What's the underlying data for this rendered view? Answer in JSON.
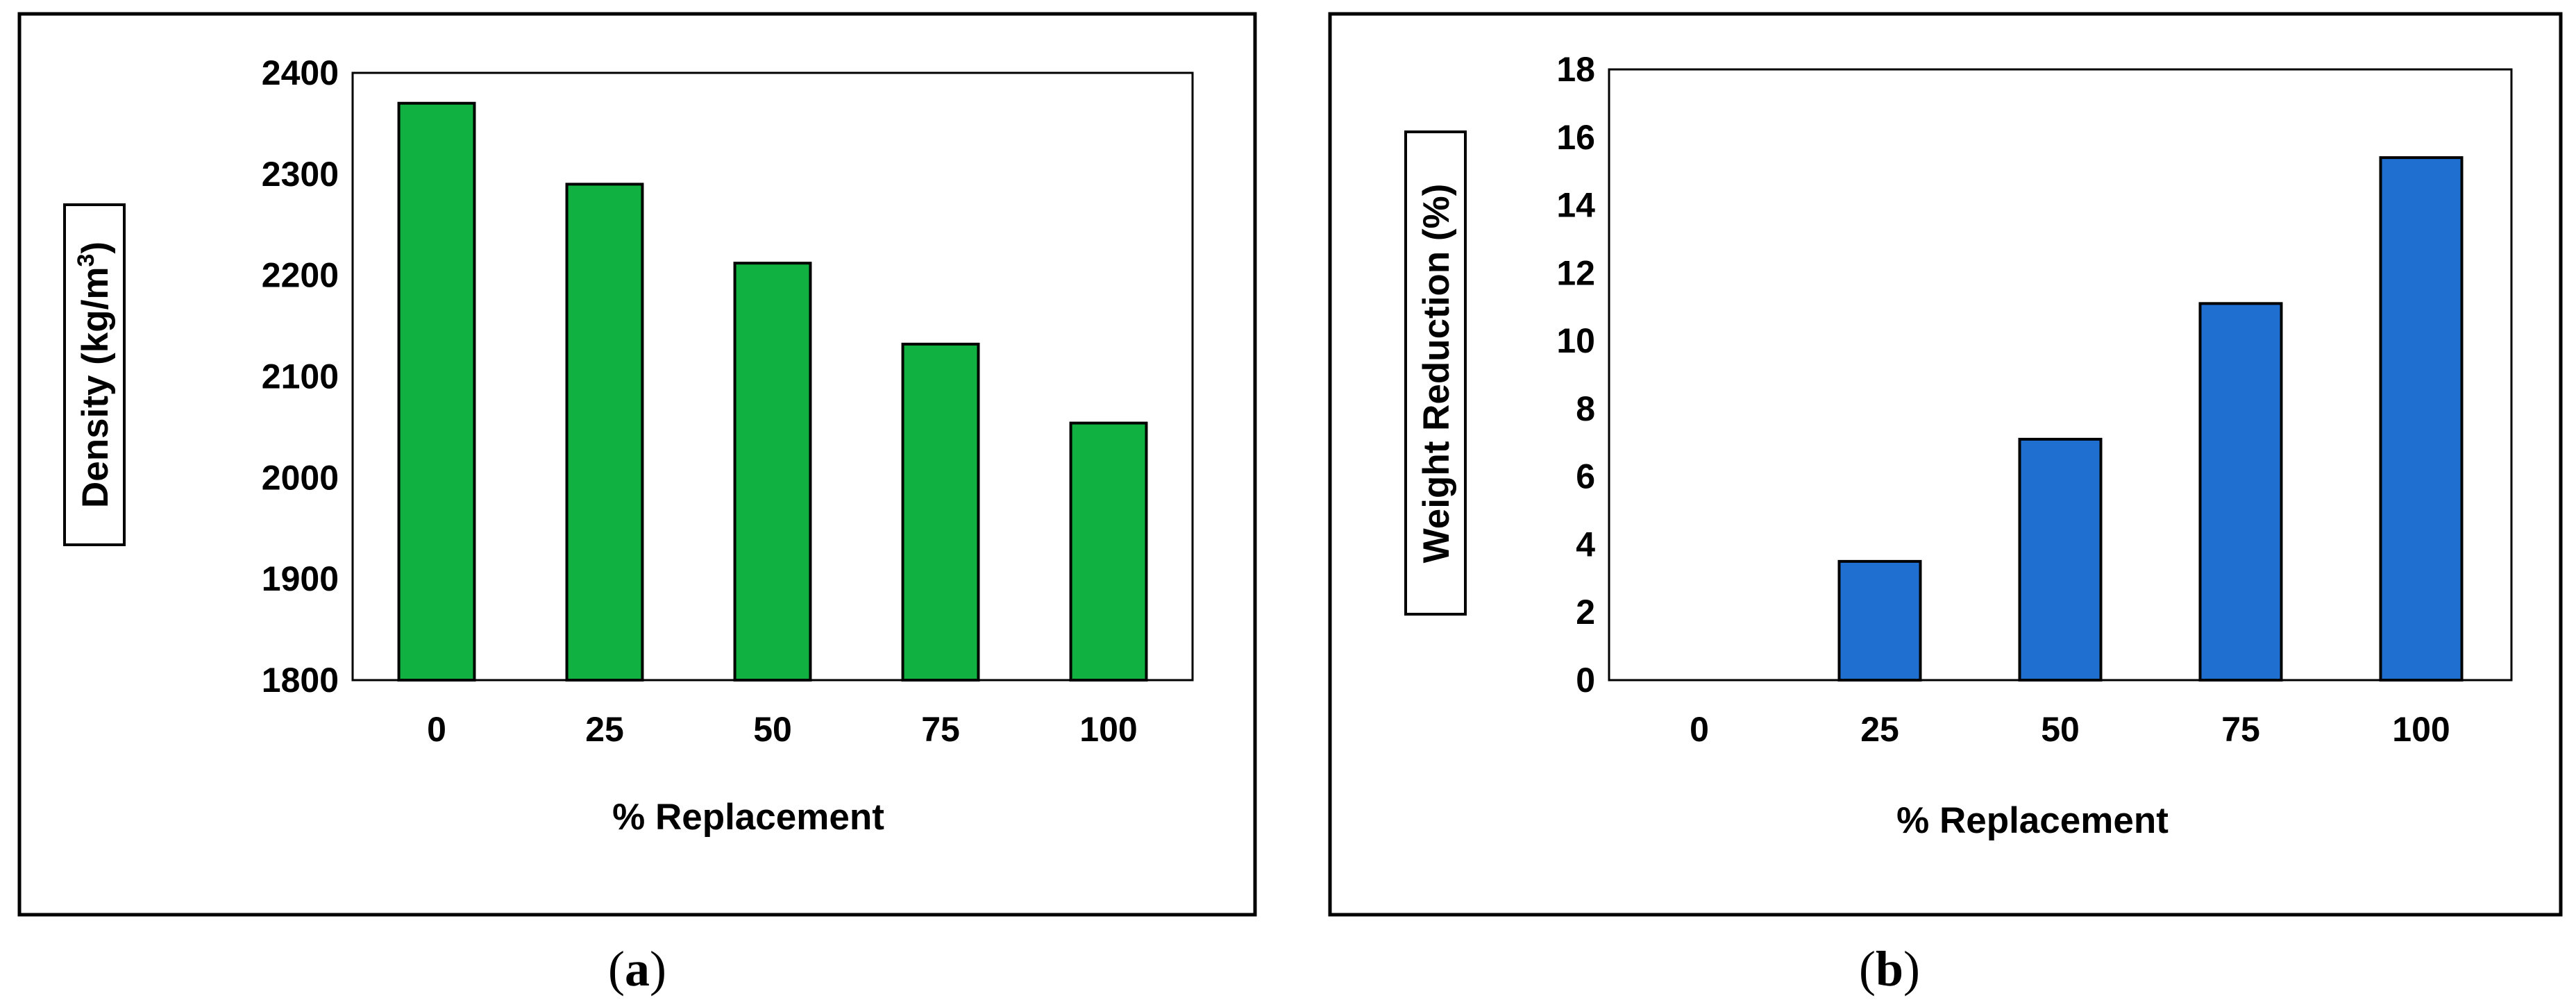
{
  "panels": [
    {
      "caption_letter": "a",
      "chart_data": {
        "type": "bar",
        "categories": [
          "0",
          "25",
          "50",
          "75",
          "100"
        ],
        "values": [
          2370,
          2290,
          2212,
          2132,
          2054
        ],
        "xlabel": "% Replacement",
        "ylabel": "Density (kg/m",
        "ylabel_superscript": "3",
        "ylabel_suffix": ")",
        "ylim": [
          1800,
          2400
        ],
        "yticks": [
          1800,
          1900,
          2000,
          2100,
          2200,
          2300,
          2400
        ],
        "bar_color": "#10b140",
        "grid": false
      }
    },
    {
      "caption_letter": "b",
      "chart_data": {
        "type": "bar",
        "categories": [
          "0",
          "25",
          "50",
          "75",
          "100"
        ],
        "values": [
          0,
          3.5,
          7.1,
          11.1,
          15.4
        ],
        "xlabel": "% Replacement",
        "ylabel": "Weight Reduction (%)",
        "ylim": [
          0,
          18
        ],
        "yticks": [
          0,
          2,
          4,
          6,
          8,
          10,
          12,
          14,
          16,
          18
        ],
        "bar_color": "#1f6fd1",
        "grid": false
      }
    }
  ]
}
